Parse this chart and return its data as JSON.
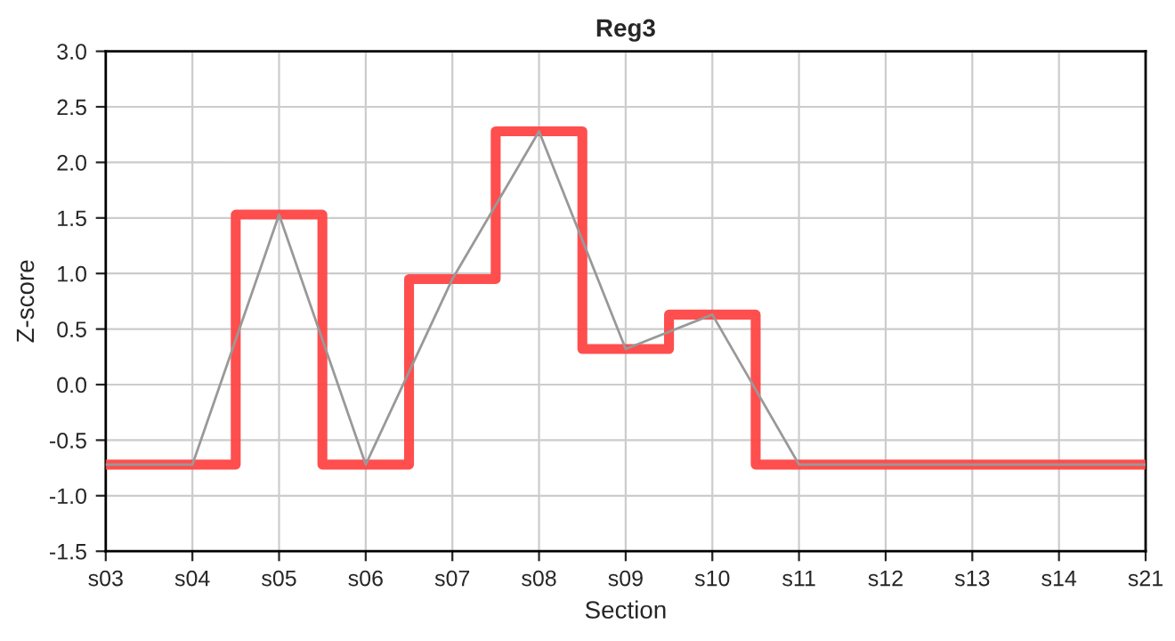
{
  "chart_data": {
    "type": "step",
    "title": "Reg3",
    "xlabel": "Section",
    "ylabel": "Z-score",
    "categories": [
      "s03",
      "s04",
      "s05",
      "s06",
      "s07",
      "s08",
      "s09",
      "s10",
      "s11",
      "s12",
      "s13",
      "s14",
      "s21"
    ],
    "series": [
      {
        "color": "#ff4444",
        "values": [
          -0.72,
          -0.72,
          1.53,
          -0.72,
          0.95,
          2.28,
          0.32,
          0.63,
          -0.72,
          -0.72,
          -0.72,
          -0.72,
          -0.72
        ]
      },
      {
        "type": "line",
        "color": "#999999",
        "values": [
          -0.72,
          -0.72,
          1.53,
          -0.72,
          0.95,
          2.28,
          0.32,
          0.63,
          -0.72,
          -0.72,
          -0.72,
          -0.72,
          -0.72
        ]
      }
    ],
    "ylim": [
      -1.5,
      3.0
    ],
    "yticks": [
      {
        "value": -1.5,
        "label": "-1.5"
      },
      {
        "value": -1.0,
        "label": "-1.0"
      },
      {
        "value": -0.5,
        "label": "-0.5"
      },
      {
        "value": 0.0,
        "label": "0.0"
      },
      {
        "value": 0.5,
        "label": "0.5"
      },
      {
        "value": 1.0,
        "label": "1.0"
      },
      {
        "value": 1.5,
        "label": "1.5"
      },
      {
        "value": 2.0,
        "label": "2.0"
      },
      {
        "value": 2.5,
        "label": "2.5"
      },
      {
        "value": 3.0,
        "label": "3.0"
      }
    ],
    "grid": true,
    "legend": false
  }
}
